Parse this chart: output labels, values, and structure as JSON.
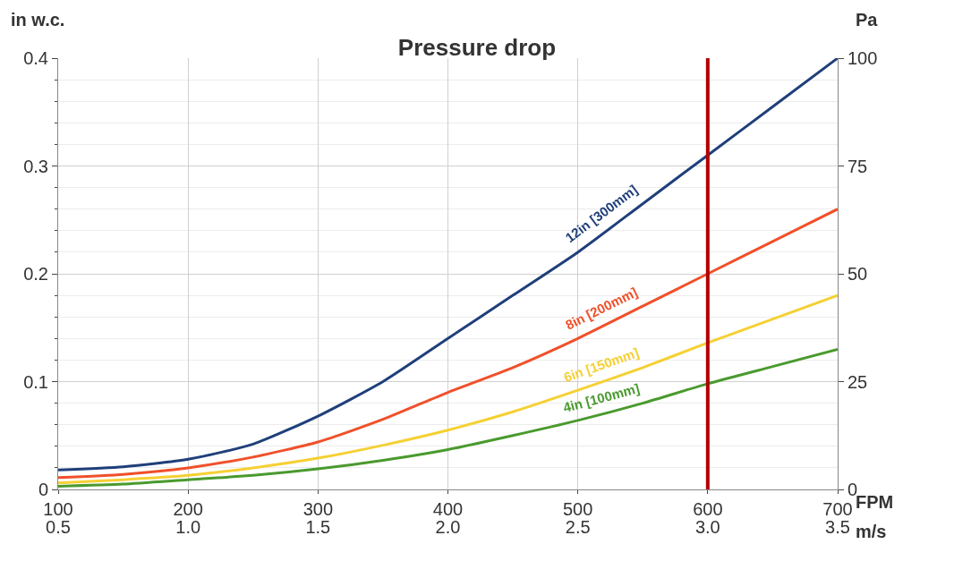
{
  "chart_data": {
    "type": "line",
    "title": "Pressure drop",
    "xlabel": "FPM",
    "x2label": "m/s",
    "ylabel": "in w.c.",
    "y2label": "Pa",
    "x": [
      100,
      150,
      200,
      250,
      300,
      350,
      400,
      450,
      500,
      550,
      600,
      650,
      700
    ],
    "series": [
      {
        "name": "12in [300mm]",
        "color": "#1f3f7a",
        "values": [
          0.018,
          0.021,
          0.028,
          0.042,
          0.068,
          0.1,
          0.14,
          0.18,
          0.22,
          0.265,
          0.31,
          0.355,
          0.4
        ]
      },
      {
        "name": "8in [200mm]",
        "color": "#f0502a",
        "values": [
          0.011,
          0.014,
          0.02,
          0.03,
          0.044,
          0.065,
          0.09,
          0.113,
          0.14,
          0.17,
          0.2,
          0.23,
          0.26
        ]
      },
      {
        "name": "6in [150mm]",
        "color": "#f5d033",
        "values": [
          0.006,
          0.009,
          0.013,
          0.02,
          0.029,
          0.041,
          0.055,
          0.072,
          0.092,
          0.113,
          0.136,
          0.158,
          0.18
        ]
      },
      {
        "name": "4in [100mm]",
        "color": "#4a9a2e",
        "values": [
          0.003,
          0.005,
          0.009,
          0.013,
          0.019,
          0.027,
          0.037,
          0.05,
          0.064,
          0.08,
          0.098,
          0.114,
          0.13
        ]
      }
    ],
    "xlim": [
      100,
      700
    ],
    "xticks": [
      100,
      200,
      300,
      400,
      500,
      600,
      700
    ],
    "x2lim": [
      0.5,
      3.5
    ],
    "x2ticks": [
      0.5,
      {
        "value": 1,
        "label": "1.0"
      },
      1.5,
      {
        "value": 2,
        "label": "2.0"
      },
      2.5,
      {
        "value": 3,
        "label": "3.0"
      },
      3.5
    ],
    "ylim": [
      0,
      0.4
    ],
    "yticks": [
      0,
      0.1,
      0.2,
      0.3,
      0.4
    ],
    "y2lim": [
      0,
      100
    ],
    "y2ticks": [
      0,
      25,
      50,
      75,
      100
    ],
    "ref_lines": [
      {
        "axis": "x",
        "value": 600,
        "color": "#b00000"
      }
    ],
    "grid": true,
    "legend": false,
    "marker": "none",
    "line_style": "solid"
  }
}
